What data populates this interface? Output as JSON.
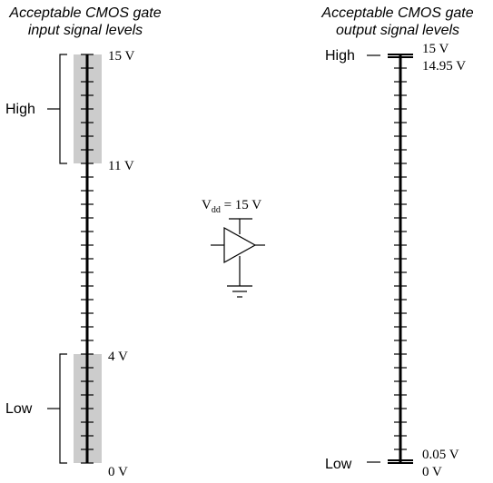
{
  "input_scale": {
    "title_line1": "Acceptable CMOS gate",
    "title_line2": "input signal levels",
    "high_label": "High",
    "low_label": "Low",
    "labels": {
      "top": "15 V",
      "high_threshold": "11 V",
      "low_threshold": "4 V",
      "bottom": "0 V"
    },
    "band_color": "#cccccc"
  },
  "output_scale": {
    "title_line1": "Acceptable CMOS gate",
    "title_line2": "output signal levels",
    "high_label": "High",
    "low_label": "Low",
    "labels": {
      "top": "15 V",
      "high_min": "14.95 V",
      "low_max": "0.05 V",
      "bottom": "0 V"
    }
  },
  "gate": {
    "supply_main": "V",
    "supply_sub": "dd",
    "supply_value": " = 15 V",
    "symbol": "buffer-gate-icon"
  },
  "chart_data": {
    "type": "diagram",
    "input_levels_V": {
      "max": 15,
      "high_min": 11,
      "low_max": 4,
      "min": 0
    },
    "output_levels_V": {
      "max": 15,
      "high_min": 14.95,
      "low_max": 0.05,
      "min": 0
    },
    "supply_V": 15
  }
}
